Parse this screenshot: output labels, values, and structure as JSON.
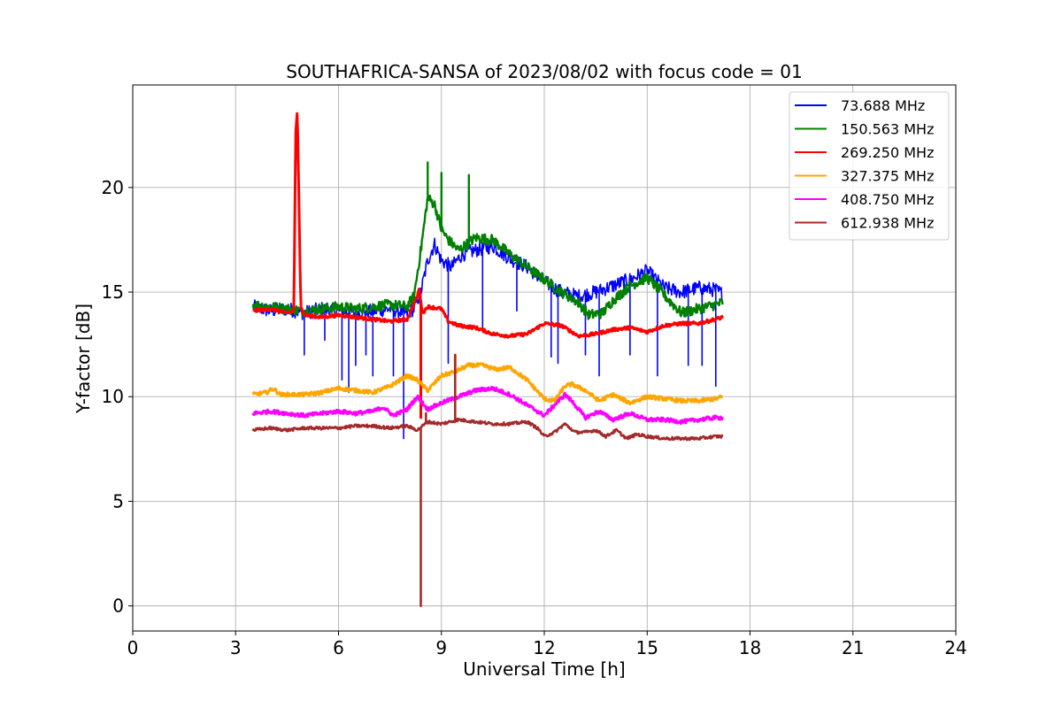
{
  "chart_data": {
    "type": "line",
    "title": "SOUTHAFRICA-SANSA of 2023/08/02 with focus code = 01",
    "xlabel": "Universal Time [h]",
    "ylabel": "Y-factor [dB]",
    "xlim": [
      0,
      24
    ],
    "ylim": [
      -1.2,
      24.9
    ],
    "xticks": [
      0,
      3,
      6,
      9,
      12,
      15,
      18,
      21,
      24
    ],
    "yticks": [
      0,
      5,
      10,
      15,
      20
    ],
    "xtick_labels": [
      "0",
      "3",
      "6",
      "9",
      "12",
      "15",
      "18",
      "21",
      "24"
    ],
    "ytick_labels": [
      "0",
      "5",
      "10",
      "15",
      "20"
    ],
    "grid": true,
    "legend_position": "top-right",
    "series": [
      {
        "name": " 73.688 MHz",
        "color": "#0000ff",
        "x": [
          3.5,
          4.0,
          4.5,
          5.0,
          5.5,
          6.0,
          6.5,
          7.0,
          7.5,
          8.0,
          8.2,
          8.4,
          8.6,
          8.8,
          9.0,
          9.3,
          9.6,
          10.0,
          10.5,
          11.0,
          11.5,
          12.0,
          12.5,
          13.0,
          13.5,
          14.0,
          14.5,
          15.0,
          15.5,
          16.0,
          16.5,
          17.0,
          17.2
        ],
        "y": [
          14.3,
          14.1,
          14.2,
          14.0,
          14.2,
          14.1,
          14.0,
          14.1,
          14.2,
          14.0,
          14.2,
          15.0,
          16.5,
          17.3,
          16.5,
          16.2,
          16.8,
          17.0,
          17.2,
          16.6,
          16.2,
          15.5,
          15.0,
          14.8,
          15.0,
          15.3,
          15.6,
          16.0,
          15.2,
          15.0,
          15.2,
          15.1,
          14.9
        ],
        "spikes": [
          [
            5.0,
            12.0
          ],
          [
            5.6,
            12.7
          ],
          [
            6.1,
            10.8
          ],
          [
            6.3,
            10.2
          ],
          [
            6.5,
            11.5
          ],
          [
            6.8,
            12.0
          ],
          [
            7.0,
            11.0
          ],
          [
            7.6,
            11.0
          ],
          [
            7.9,
            8.0
          ],
          [
            8.4,
            10.9
          ],
          [
            9.2,
            11.6
          ],
          [
            10.2,
            13.1
          ],
          [
            11.2,
            14.1
          ],
          [
            12.2,
            11.9
          ],
          [
            12.4,
            11.6
          ],
          [
            13.2,
            12.0
          ],
          [
            13.6,
            11.0
          ],
          [
            14.5,
            12.0
          ],
          [
            15.3,
            11.0
          ],
          [
            16.2,
            11.5
          ],
          [
            16.6,
            11.5
          ],
          [
            17.0,
            10.5
          ]
        ]
      },
      {
        "name": "150.563 MHz",
        "color": "#008000",
        "x": [
          3.5,
          4.0,
          4.5,
          5.0,
          5.5,
          6.0,
          6.5,
          7.0,
          7.5,
          8.0,
          8.2,
          8.4,
          8.6,
          8.8,
          9.0,
          9.2,
          9.5,
          10.0,
          10.5,
          11.0,
          11.5,
          12.0,
          12.5,
          13.0,
          13.3,
          13.7,
          14.0,
          14.5,
          15.0,
          15.3,
          15.7,
          16.0,
          16.5,
          17.0,
          17.2
        ],
        "y": [
          14.4,
          14.3,
          14.2,
          14.1,
          14.2,
          14.3,
          14.2,
          14.3,
          14.4,
          14.3,
          14.8,
          17.0,
          19.5,
          19.2,
          18.0,
          17.5,
          17.0,
          17.6,
          17.5,
          16.8,
          16.2,
          15.6,
          15.0,
          14.5,
          13.9,
          14.0,
          14.6,
          15.3,
          15.7,
          15.2,
          14.5,
          14.0,
          14.2,
          14.4,
          14.5
        ],
        "spikes": [
          [
            8.6,
            21.2
          ],
          [
            9.0,
            20.7
          ],
          [
            9.8,
            20.6
          ]
        ]
      },
      {
        "name": "269.250 MHz",
        "color": "#ff0000",
        "x": [
          3.5,
          4.0,
          4.5,
          4.7,
          4.75,
          4.8,
          4.85,
          4.9,
          5.0,
          5.5,
          6.0,
          6.5,
          7.0,
          7.5,
          8.0,
          8.3,
          8.35,
          8.45,
          8.6,
          9.0,
          9.2,
          9.5,
          10.0,
          10.5,
          11.0,
          11.5,
          12.0,
          12.5,
          13.0,
          13.5,
          14.0,
          14.5,
          15.0,
          15.5,
          16.0,
          16.5,
          17.0,
          17.2
        ],
        "y": [
          14.1,
          14.2,
          14.0,
          14.1,
          22.5,
          23.7,
          19.0,
          14.3,
          13.9,
          13.8,
          13.9,
          13.8,
          13.7,
          13.6,
          13.7,
          14.8,
          15.2,
          14.0,
          14.3,
          14.2,
          13.6,
          13.4,
          13.3,
          13.0,
          12.9,
          13.0,
          13.5,
          13.4,
          12.9,
          13.0,
          13.2,
          13.3,
          13.1,
          13.4,
          13.5,
          13.5,
          13.7,
          13.8
        ],
        "spikes": [
          [
            8.4,
            9.0
          ]
        ]
      },
      {
        "name": "327.375 MHz",
        "color": "#ffa500",
        "x": [
          3.5,
          3.9,
          4.1,
          4.3,
          5.0,
          5.5,
          6.0,
          6.5,
          7.0,
          7.5,
          8.0,
          8.3,
          8.6,
          9.0,
          9.4,
          9.8,
          10.2,
          10.6,
          11.0,
          11.5,
          12.0,
          12.3,
          12.6,
          12.8,
          13.2,
          13.6,
          14.0,
          14.5,
          15.0,
          15.5,
          16.0,
          16.5,
          17.0,
          17.2
        ],
        "y": [
          10.1,
          10.2,
          10.4,
          10.1,
          10.1,
          10.2,
          10.4,
          10.3,
          10.2,
          10.5,
          11.0,
          10.8,
          10.3,
          11.0,
          11.2,
          11.5,
          11.5,
          11.3,
          11.4,
          10.8,
          9.9,
          9.8,
          10.5,
          10.6,
          10.3,
          9.8,
          10.1,
          9.7,
          10.0,
          9.9,
          9.8,
          9.8,
          9.9,
          10.0
        ],
        "spikes": [
          [
            9.4,
            12.0
          ]
        ]
      },
      {
        "name": "408.750 MHz",
        "color": "#ff00ff",
        "x": [
          3.5,
          4.0,
          4.5,
          5.0,
          5.5,
          6.0,
          6.5,
          7.0,
          7.3,
          7.6,
          8.0,
          8.3,
          8.6,
          9.0,
          9.5,
          10.0,
          10.5,
          11.0,
          11.5,
          12.0,
          12.3,
          12.6,
          12.8,
          13.2,
          13.6,
          14.0,
          14.5,
          15.0,
          15.5,
          16.0,
          16.5,
          17.0,
          17.2
        ],
        "y": [
          9.2,
          9.3,
          9.2,
          9.1,
          9.2,
          9.3,
          9.2,
          9.3,
          9.5,
          9.1,
          9.4,
          10.0,
          9.4,
          9.7,
          10.0,
          10.3,
          10.4,
          10.1,
          9.6,
          9.1,
          9.6,
          10.1,
          9.8,
          9.0,
          9.3,
          8.9,
          9.2,
          8.9,
          8.9,
          8.8,
          8.9,
          9.0,
          9.0
        ],
        "spikes": []
      },
      {
        "name": "612.938 MHz",
        "color": "#a52a2a",
        "x": [
          3.5,
          4.0,
          4.5,
          5.0,
          5.5,
          6.0,
          6.5,
          7.0,
          7.5,
          8.0,
          8.3,
          8.6,
          9.0,
          9.5,
          10.0,
          10.5,
          11.0,
          11.5,
          11.8,
          12.0,
          12.3,
          12.6,
          12.9,
          13.2,
          13.5,
          13.8,
          14.1,
          14.4,
          14.7,
          15.0,
          15.5,
          16.0,
          16.5,
          17.0,
          17.2
        ],
        "y": [
          8.4,
          8.5,
          8.4,
          8.5,
          8.5,
          8.5,
          8.6,
          8.6,
          8.5,
          8.6,
          8.4,
          8.8,
          8.7,
          8.9,
          8.8,
          8.7,
          8.7,
          8.8,
          8.5,
          8.1,
          8.3,
          8.7,
          8.3,
          8.3,
          8.4,
          8.1,
          8.4,
          8.0,
          8.2,
          8.1,
          8.0,
          8.0,
          8.0,
          8.1,
          8.1
        ],
        "spikes": [
          [
            8.4,
            0.0
          ],
          [
            9.4,
            12.0
          ],
          [
            8.55,
            9.2
          ]
        ]
      }
    ]
  }
}
